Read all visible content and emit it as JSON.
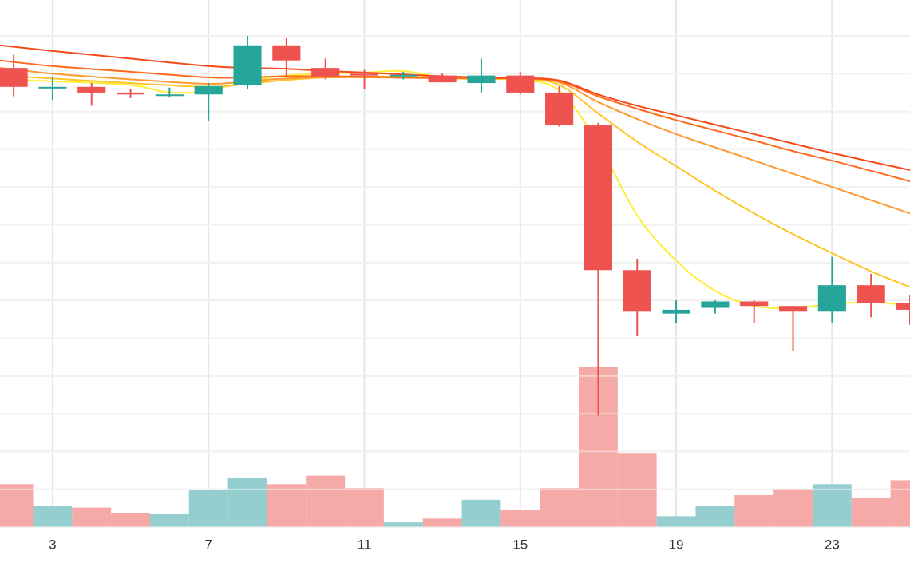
{
  "chart_data": {
    "type": "candlestick",
    "grid": true,
    "legend": "none",
    "x_ticks": [
      3,
      7,
      11,
      15,
      19,
      23
    ],
    "x_range": [
      1.65,
      25.0
    ],
    "price_range": [
      0.0,
      13.0
    ],
    "volume_range": [
      0.0,
      4.2
    ],
    "colors": {
      "up": "#26a69a",
      "down": "#ef5350",
      "volume_up": "#94cecf",
      "volume_down": "#f5aaa8",
      "grid": "#e6e6e6",
      "ma": [
        "#ffee33",
        "#ffc629",
        "#ff9930",
        "#ff6a1c",
        "#f84918"
      ]
    },
    "candles": [
      {
        "x": 2,
        "open": 11.2,
        "high": 11.55,
        "low": 10.45,
        "close": 10.7
      },
      {
        "x": 3,
        "open": 10.7,
        "high": 10.95,
        "low": 10.35,
        "close": 10.7
      },
      {
        "x": 4,
        "open": 10.7,
        "high": 10.8,
        "low": 10.2,
        "close": 10.55
      },
      {
        "x": 5,
        "open": 10.55,
        "high": 10.65,
        "low": 10.4,
        "close": 10.5
      },
      {
        "x": 6,
        "open": 10.5,
        "high": 10.68,
        "low": 10.42,
        "close": 10.5
      },
      {
        "x": 7,
        "open": 10.5,
        "high": 10.8,
        "low": 9.8,
        "close": 10.72
      },
      {
        "x": 8,
        "open": 10.75,
        "high": 12.05,
        "low": 10.65,
        "close": 11.8
      },
      {
        "x": 9,
        "open": 11.8,
        "high": 12.0,
        "low": 10.95,
        "close": 11.4
      },
      {
        "x": 10,
        "open": 11.2,
        "high": 11.45,
        "low": 10.9,
        "close": 10.98
      },
      {
        "x": 11,
        "open": 11.05,
        "high": 11.15,
        "low": 10.65,
        "close": 11.0
      },
      {
        "x": 12,
        "open": 11.0,
        "high": 11.1,
        "low": 10.9,
        "close": 11.02
      },
      {
        "x": 13,
        "open": 11.0,
        "high": 11.05,
        "low": 10.82,
        "close": 10.82
      },
      {
        "x": 14,
        "open": 10.8,
        "high": 11.45,
        "low": 10.55,
        "close": 11.0
      },
      {
        "x": 15,
        "open": 11.0,
        "high": 11.1,
        "low": 10.5,
        "close": 10.55
      },
      {
        "x": 16,
        "open": 10.55,
        "high": 10.72,
        "low": 9.65,
        "close": 9.68
      },
      {
        "x": 17,
        "open": 9.68,
        "high": 9.75,
        "low": 2.0,
        "close": 5.85
      },
      {
        "x": 18,
        "open": 5.85,
        "high": 6.15,
        "low": 4.1,
        "close": 4.75
      },
      {
        "x": 19,
        "open": 4.7,
        "high": 5.05,
        "low": 4.45,
        "close": 4.8
      },
      {
        "x": 20,
        "open": 4.85,
        "high": 5.05,
        "low": 4.7,
        "close": 5.02
      },
      {
        "x": 21,
        "open": 5.02,
        "high": 5.05,
        "low": 4.45,
        "close": 4.9
      },
      {
        "x": 22,
        "open": 4.9,
        "high": 4.9,
        "low": 3.7,
        "close": 4.75
      },
      {
        "x": 23,
        "open": 4.75,
        "high": 6.2,
        "low": 4.45,
        "close": 5.45
      },
      {
        "x": 24,
        "open": 5.45,
        "high": 5.75,
        "low": 4.6,
        "close": 4.98
      },
      {
        "x": 25,
        "open": 4.98,
        "high": 5.2,
        "low": 4.4,
        "close": 4.8
      }
    ],
    "volume": [
      {
        "x": 2,
        "value": 1.1,
        "direction": "down"
      },
      {
        "x": 3,
        "value": 0.55,
        "direction": "up"
      },
      {
        "x": 4,
        "value": 0.5,
        "direction": "down"
      },
      {
        "x": 5,
        "value": 0.35,
        "direction": "down"
      },
      {
        "x": 6,
        "value": 0.33,
        "direction": "up"
      },
      {
        "x": 7,
        "value": 0.95,
        "direction": "up"
      },
      {
        "x": 8,
        "value": 1.25,
        "direction": "up"
      },
      {
        "x": 9,
        "value": 1.1,
        "direction": "down"
      },
      {
        "x": 10,
        "value": 1.32,
        "direction": "down"
      },
      {
        "x": 11,
        "value": 1.0,
        "direction": "down"
      },
      {
        "x": 12,
        "value": 0.12,
        "direction": "up"
      },
      {
        "x": 13,
        "value": 0.22,
        "direction": "down"
      },
      {
        "x": 14,
        "value": 0.7,
        "direction": "up"
      },
      {
        "x": 15,
        "value": 0.45,
        "direction": "down"
      },
      {
        "x": 16,
        "value": 1.0,
        "direction": "down"
      },
      {
        "x": 17,
        "value": 4.1,
        "direction": "down"
      },
      {
        "x": 18,
        "value": 1.9,
        "direction": "down"
      },
      {
        "x": 19,
        "value": 0.28,
        "direction": "up"
      },
      {
        "x": 20,
        "value": 0.55,
        "direction": "up"
      },
      {
        "x": 21,
        "value": 0.82,
        "direction": "down"
      },
      {
        "x": 22,
        "value": 0.98,
        "direction": "down"
      },
      {
        "x": 23,
        "value": 1.1,
        "direction": "up"
      },
      {
        "x": 24,
        "value": 0.76,
        "direction": "down"
      },
      {
        "x": 25,
        "value": 1.2,
        "direction": "down"
      }
    ],
    "moving_averages": [
      {
        "color_index": 0,
        "x": [
          1.65,
          3,
          5,
          6,
          7,
          8,
          9,
          10,
          11,
          12,
          13,
          14,
          15,
          16,
          17,
          18,
          19,
          20,
          21,
          22,
          23,
          24,
          25
        ],
        "y": [
          10.9,
          10.85,
          10.75,
          10.55,
          10.6,
          10.85,
          11.0,
          11.05,
          11.08,
          11.12,
          10.95,
          10.9,
          10.88,
          10.6,
          9.2,
          7.3,
          6.1,
          5.3,
          4.9,
          4.85,
          4.95,
          5.0,
          4.92
        ]
      },
      {
        "color_index": 1,
        "x": [
          1.65,
          3,
          5,
          7,
          8,
          9,
          10,
          11,
          12,
          13,
          14,
          15,
          16,
          17,
          18,
          19,
          20,
          21,
          22,
          23,
          24,
          25
        ],
        "y": [
          11.0,
          10.92,
          10.8,
          10.7,
          10.78,
          10.88,
          10.95,
          10.97,
          10.97,
          10.95,
          10.93,
          10.92,
          10.75,
          10.0,
          9.25,
          8.6,
          7.95,
          7.35,
          6.8,
          6.3,
          5.82,
          5.4
        ]
      },
      {
        "color_index": 2,
        "x": [
          1.65,
          3,
          5,
          7,
          8,
          9,
          10,
          11,
          12,
          13,
          14,
          15,
          16,
          17,
          18,
          19,
          20,
          21,
          22,
          23,
          24,
          25
        ],
        "y": [
          11.2,
          11.05,
          10.9,
          10.78,
          10.85,
          10.92,
          10.95,
          10.95,
          10.94,
          10.93,
          10.92,
          10.92,
          10.82,
          10.3,
          9.85,
          9.45,
          9.1,
          8.75,
          8.4,
          8.05,
          7.7,
          7.35
        ]
      },
      {
        "color_index": 3,
        "x": [
          1.65,
          3,
          5,
          7,
          8,
          9,
          10,
          11,
          12,
          13,
          14,
          15,
          16,
          17,
          18,
          19,
          20,
          21,
          22,
          23,
          24,
          25
        ],
        "y": [
          11.4,
          11.25,
          11.1,
          10.95,
          10.95,
          10.98,
          10.98,
          10.97,
          10.95,
          10.93,
          10.92,
          10.92,
          10.85,
          10.45,
          10.12,
          9.82,
          9.55,
          9.28,
          9.0,
          8.75,
          8.48,
          8.2
        ]
      },
      {
        "color_index": 4,
        "x": [
          1.65,
          3,
          5,
          7,
          8,
          9,
          10,
          11,
          12,
          13,
          14,
          15,
          16,
          17,
          18,
          19,
          20,
          21,
          22,
          23,
          24,
          25
        ],
        "y": [
          11.8,
          11.65,
          11.45,
          11.25,
          11.2,
          11.18,
          11.12,
          11.08,
          11.03,
          10.98,
          10.95,
          10.93,
          10.87,
          10.5,
          10.2,
          9.95,
          9.7,
          9.45,
          9.2,
          8.95,
          8.72,
          8.5
        ]
      }
    ]
  }
}
